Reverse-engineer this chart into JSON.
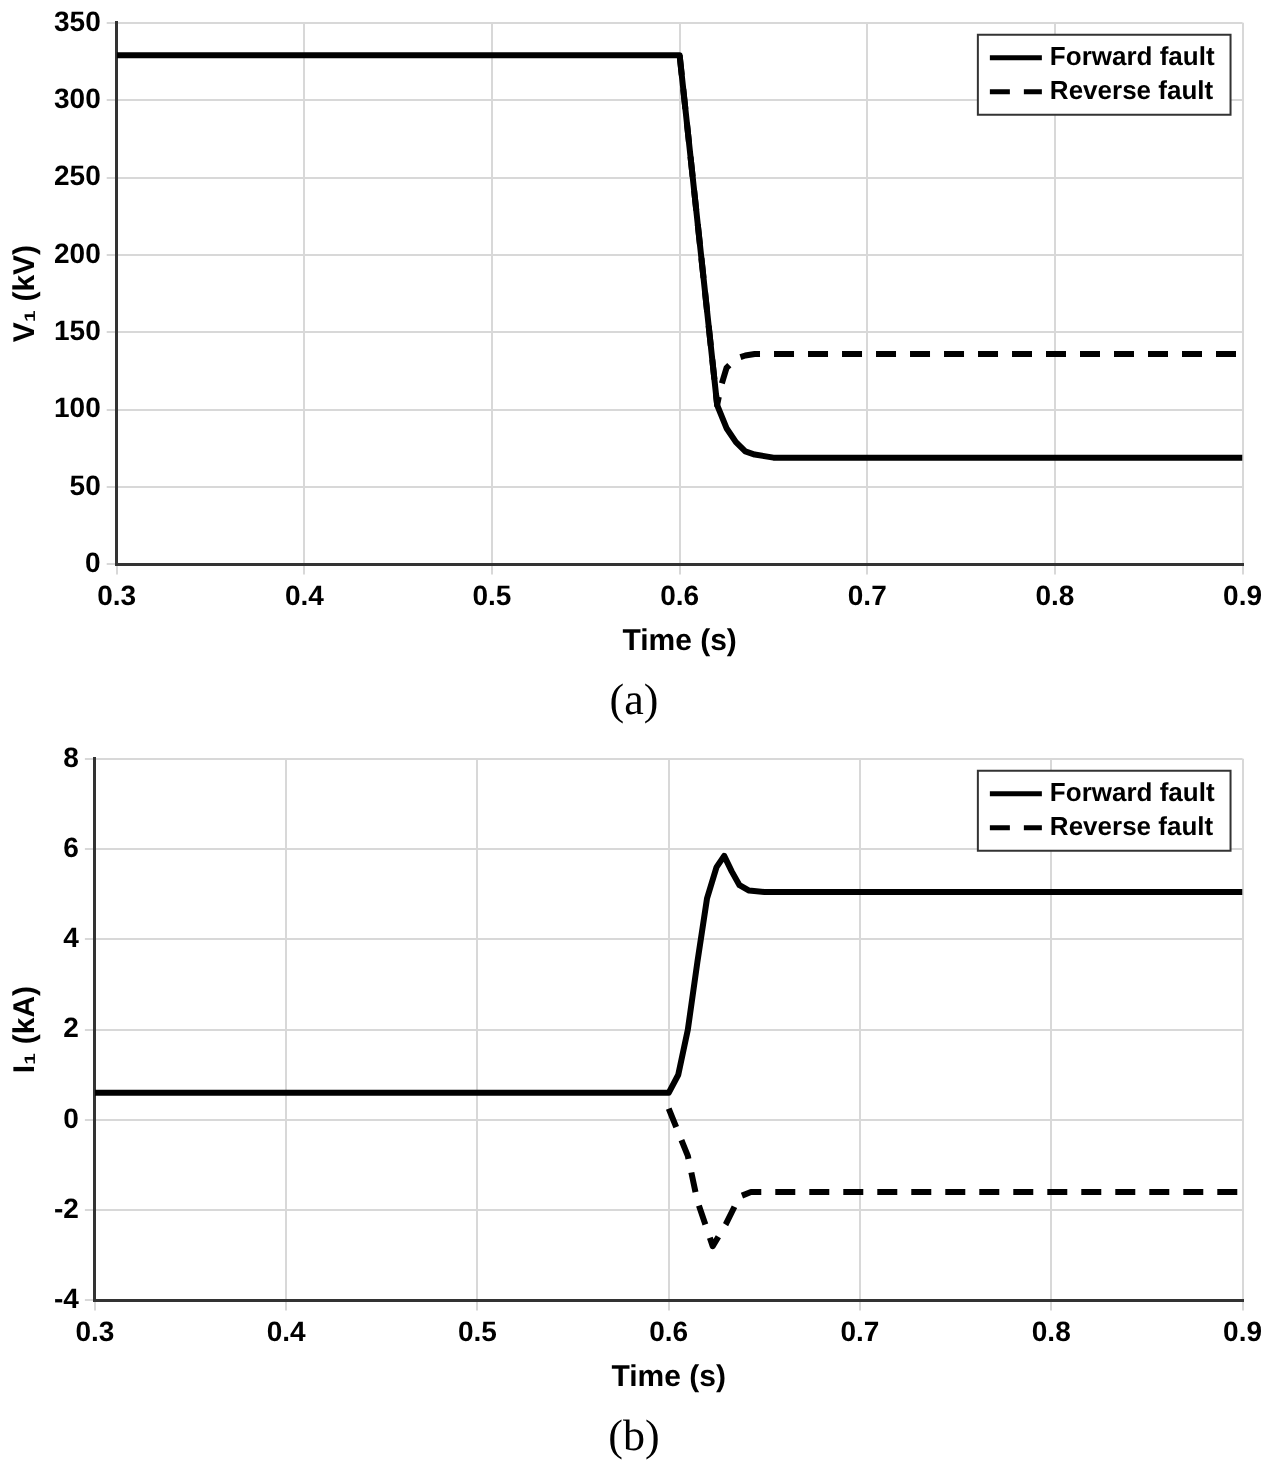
{
  "chart_data": [
    {
      "type": "line",
      "xlabel": "Time (s)",
      "ylabel": "V₁ (kV)",
      "annotations": [
        "(a)"
      ],
      "xlim": [
        0.3,
        0.9
      ],
      "xticks": [
        0.3,
        0.4,
        0.5,
        0.6,
        0.7,
        0.8,
        0.9
      ],
      "ylim": [
        0,
        350
      ],
      "yticks": [
        0,
        50,
        100,
        150,
        200,
        250,
        300,
        350
      ],
      "grid": true,
      "legend": "top right",
      "series": [
        {
          "name": "Forward fault",
          "color": "#000000",
          "line_style": "solid",
          "x": [
            0.3,
            0.6,
            0.62,
            0.625,
            0.63,
            0.635,
            0.64,
            0.65,
            0.9
          ],
          "values": [
            329,
            329,
            103,
            88,
            79,
            73,
            71,
            69,
            69
          ]
        },
        {
          "name": "Reverse fault",
          "color": "#000000",
          "line_style": "dashed",
          "x": [
            0.6,
            0.62,
            0.622,
            0.625,
            0.63,
            0.635,
            0.64,
            0.9
          ],
          "values": [
            329,
            103,
            115,
            127,
            133,
            135,
            136,
            136
          ]
        }
      ]
    },
    {
      "type": "line",
      "xlabel": "Time (s)",
      "ylabel": "I₁ (kA)",
      "annotations": [
        "(b)"
      ],
      "xlim": [
        0.3,
        0.9
      ],
      "xticks": [
        0.3,
        0.4,
        0.5,
        0.6,
        0.7,
        0.8,
        0.9
      ],
      "ylim": [
        -4,
        8
      ],
      "yticks": [
        -4,
        -2,
        0,
        2,
        4,
        6,
        8
      ],
      "grid": true,
      "legend": "top right",
      "series": [
        {
          "name": "Forward fault",
          "color": "#000000",
          "line_style": "solid",
          "x": [
            0.3,
            0.6,
            0.605,
            0.61,
            0.615,
            0.62,
            0.625,
            0.629,
            0.633,
            0.637,
            0.642,
            0.65,
            0.9
          ],
          "values": [
            0.6,
            0.6,
            1.0,
            2.0,
            3.5,
            4.9,
            5.6,
            5.85,
            5.5,
            5.2,
            5.08,
            5.05,
            5.05
          ]
        },
        {
          "name": "Reverse fault",
          "color": "#000000",
          "line_style": "dashed",
          "x": [
            0.6,
            0.61,
            0.615,
            0.623,
            0.63,
            0.637,
            0.643,
            0.65,
            0.9
          ],
          "values": [
            0.25,
            -0.8,
            -1.8,
            -2.8,
            -2.3,
            -1.7,
            -1.6,
            -1.6,
            -1.6
          ]
        }
      ]
    }
  ]
}
